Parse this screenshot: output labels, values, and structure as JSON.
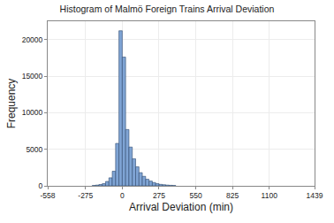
{
  "chart_data": {
    "type": "histogram",
    "title": "Histogram of Malmö Foreign Trains Arrival Deviation",
    "x_label": "Arrival Deviation (min)",
    "y_label": "Frequency",
    "bins": [
      -225,
      -200,
      -175,
      -150,
      -125,
      -100,
      -75,
      -50,
      -25,
      0,
      25,
      50,
      75,
      100,
      125,
      150,
      175,
      200,
      225,
      250,
      275,
      300,
      325,
      350,
      375,
      400
    ],
    "values": [
      50,
      100,
      180,
      300,
      600,
      1100,
      2000,
      5800,
      21200,
      17600,
      7700,
      5300,
      3700,
      2600,
      1800,
      1300,
      900,
      650,
      450,
      300,
      200,
      150,
      100,
      70,
      50
    ],
    "color": "#7fa4d4",
    "xlim": [
      -558,
      1439
    ],
    "xticks": [
      -558,
      -275,
      0,
      275,
      550,
      825,
      1100,
      1439
    ],
    "ylim": [
      0,
      22500
    ],
    "yticks": [
      0,
      5000,
      10000,
      15000,
      20000
    ],
    "grid": true
  }
}
